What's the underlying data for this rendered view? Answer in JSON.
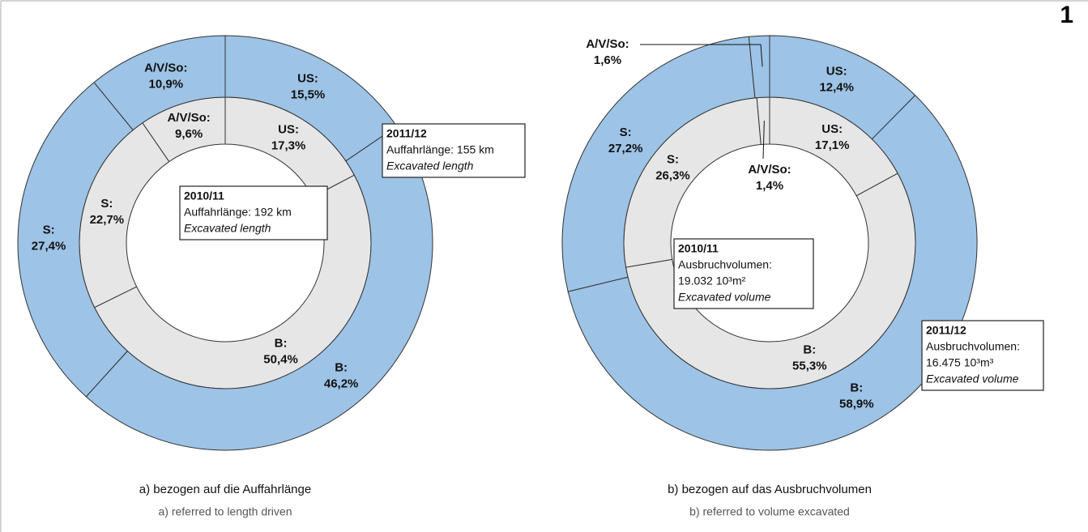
{
  "figure_number": "1",
  "chart_data": [
    {
      "type": "donut",
      "categories": [
        "US:",
        "B:",
        "S:",
        "A/V/So:"
      ],
      "series": [
        {
          "name": "2010/11",
          "ring": "inner",
          "color": "#e6e6e6",
          "values": [
            17.3,
            50.4,
            22.7,
            9.6
          ],
          "value_labels": [
            "17,3%",
            "50,4%",
            "22,7%",
            "9,6%"
          ],
          "note": [
            "Auffahrlänge: 192 km",
            "Excavated length"
          ]
        },
        {
          "name": "2011/12",
          "ring": "outer",
          "color": "#9dc3e6",
          "values": [
            15.5,
            46.2,
            27.4,
            10.9
          ],
          "value_labels": [
            "15,5%",
            "46,2%",
            "27,4%",
            "10,9%"
          ],
          "note": [
            "Auffahrlänge: 155 km",
            "Excavated length"
          ]
        }
      ],
      "caption": "a) bezogen auf die Auffahrlänge",
      "caption_en": "a) referred to length driven"
    },
    {
      "type": "donut",
      "categories": [
        "US:",
        "B:",
        "S:",
        "A/V/So:"
      ],
      "series": [
        {
          "name": "2010/11",
          "ring": "inner",
          "color": "#e6e6e6",
          "values": [
            17.1,
            55.3,
            26.3,
            1.4
          ],
          "value_labels": [
            "17,1%",
            "55,3%",
            "26,3%",
            "1,4%"
          ],
          "note": [
            "Ausbruchvolumen:",
            "19.032 10³m²",
            "Excavated volume"
          ]
        },
        {
          "name": "2011/12",
          "ring": "outer",
          "color": "#9dc3e6",
          "values": [
            12.4,
            58.9,
            27.2,
            1.6
          ],
          "value_labels": [
            "12,4%",
            "58,9%",
            "27,2%",
            "1,6%"
          ],
          "note": [
            "Ausbruchvolumen:",
            "16.475 10³m³",
            "Excavated volume"
          ]
        }
      ],
      "caption": "b) bezogen auf das Ausbruchvolumen",
      "caption_en": "b) referred to volume excavated"
    }
  ]
}
